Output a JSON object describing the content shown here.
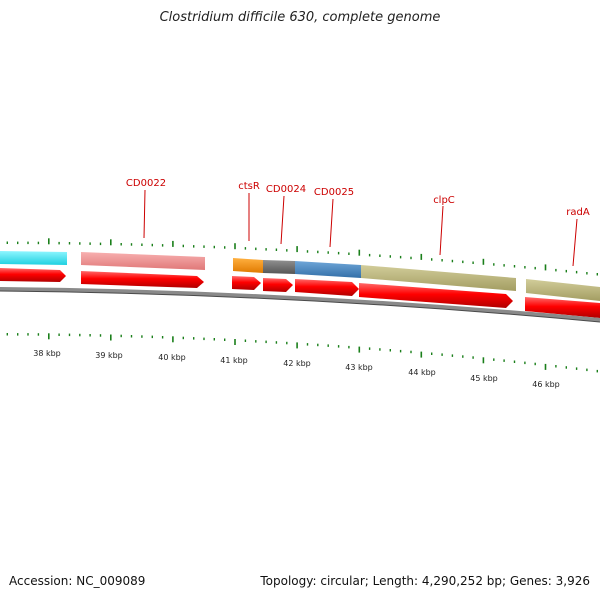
{
  "title": "Clostridium difficile 630, complete genome",
  "footer": {
    "accession": "Accession: NC_009089",
    "summary": "Topology: circular; Length: 4,290,252 bp; Genes: 3,926"
  },
  "colors": {
    "backbone": "#8a8a8a",
    "cds": "#ff0000",
    "tick": "#1a7f1a",
    "label": "#cc0000",
    "cyan": "#33e6f0",
    "pink": "#f08c8c",
    "orange": "#f08c00",
    "gray": "#6e6e6e",
    "blue": "#4a86bf",
    "olive": "#b8b27a"
  },
  "kbp_labels": [
    "38 kbp",
    "39 kbp",
    "40 kbp",
    "41 kbp",
    "42 kbp",
    "43 kbp",
    "44 kbp",
    "45 kbp",
    "46 kbp"
  ],
  "gene_labels": [
    "CD0022",
    "ctsR",
    "CD0024",
    "CD0025",
    "clpC",
    "radA"
  ]
}
